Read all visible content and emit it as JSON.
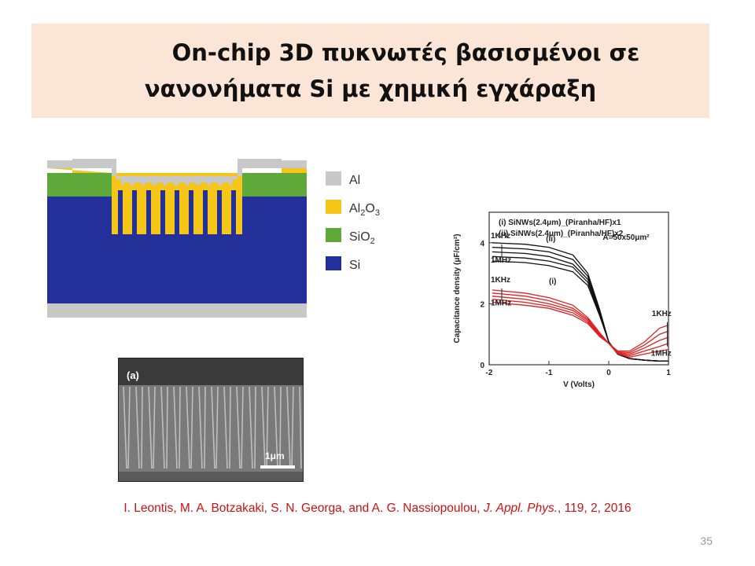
{
  "slide": {
    "title_line1": "On-chip 3D πυκνωτές βασισμένοι σε",
    "title_line2": "νανονήματα Si με χημική εγχάραξη",
    "page_number": "35"
  },
  "schematic_legend": [
    {
      "label": "Al",
      "color": "#c8c8c8"
    },
    {
      "label": "Al2O3",
      "color": "#f5c518"
    },
    {
      "label": "SiO2",
      "color": "#5fa83a"
    },
    {
      "label": "Si",
      "color": "#23309a"
    }
  ],
  "sem_image": {
    "panel_label": "(a)",
    "scale_label": "1μm"
  },
  "citation": {
    "authors": "I. Leontis, M. A. Botzakaki, S. N. Georga, and A. G. Nassiopoulou, ",
    "journal": "J. Appl. Phys.",
    "details": ", 119,  2, 2016"
  },
  "chart_data": {
    "type": "line",
    "xlabel": "V (Volts)",
    "ylabel": "Capacitance density (μF/cm²)",
    "xlim": [
      -2,
      1
    ],
    "ylim": [
      0,
      5
    ],
    "x_ticks": [
      "-2",
      "-1",
      "0",
      "1"
    ],
    "y_ticks": [
      "0",
      "2",
      "4"
    ],
    "legend": [
      "(i) SiNWs(2.4μm)_(Piranha/HF)x1",
      "(ii) SiNWs(2.4μm)_(Piranha/HF)x2"
    ],
    "area_label": "A=50x50μm²",
    "annotations": [
      {
        "text": "1KHz"
      },
      {
        "text": "1MHz"
      },
      {
        "text": "(ii)"
      },
      {
        "text": "1KHz"
      },
      {
        "text": "1MHz"
      },
      {
        "text": "(i)"
      },
      {
        "text": "1KHz"
      },
      {
        "text": "1MHz"
      }
    ],
    "series": [
      {
        "group": "(ii)",
        "color": "#111111",
        "x": [
          -1.95,
          -1.4,
          -1.0,
          -0.6,
          -0.35,
          -0.15,
          0.0,
          0.15,
          0.35,
          0.6,
          0.85,
          1.0
        ],
        "values": [
          4.0,
          3.95,
          3.85,
          3.6,
          3.0,
          1.8,
          0.75,
          0.35,
          0.2,
          0.15,
          0.12,
          0.12
        ]
      },
      {
        "group": "(ii)",
        "color": "#111111",
        "x": [
          -1.95,
          -1.4,
          -1.0,
          -0.6,
          -0.35,
          -0.15,
          0.0,
          0.15,
          0.35,
          0.6,
          0.85,
          1.0
        ],
        "values": [
          3.85,
          3.8,
          3.7,
          3.45,
          2.9,
          1.75,
          0.75,
          0.35,
          0.2,
          0.15,
          0.12,
          0.12
        ]
      },
      {
        "group": "(ii)",
        "color": "#111111",
        "x": [
          -1.95,
          -1.4,
          -1.0,
          -0.6,
          -0.35,
          -0.15,
          0.0,
          0.15,
          0.35,
          0.6,
          0.85,
          1.0
        ],
        "values": [
          3.7,
          3.65,
          3.55,
          3.3,
          2.8,
          1.7,
          0.75,
          0.35,
          0.2,
          0.15,
          0.12,
          0.12
        ]
      },
      {
        "group": "(ii)",
        "color": "#111111",
        "x": [
          -1.95,
          -1.4,
          -1.0,
          -0.6,
          -0.35,
          -0.15,
          0.0,
          0.15,
          0.35,
          0.6,
          0.85,
          1.0
        ],
        "values": [
          3.55,
          3.5,
          3.4,
          3.2,
          2.7,
          1.65,
          0.75,
          0.35,
          0.2,
          0.15,
          0.12,
          0.12
        ]
      },
      {
        "group": "(ii)",
        "color": "#111111",
        "x": [
          -1.95,
          -1.4,
          -1.0,
          -0.6,
          -0.35,
          -0.15,
          0.0,
          0.15,
          0.35,
          0.6,
          0.85,
          1.0
        ],
        "values": [
          3.4,
          3.35,
          3.25,
          3.05,
          2.6,
          1.6,
          0.75,
          0.35,
          0.2,
          0.15,
          0.12,
          0.12
        ]
      },
      {
        "group": "(i)",
        "color": "#e02020",
        "x": [
          -1.95,
          -1.4,
          -1.0,
          -0.6,
          -0.35,
          -0.15,
          0.0,
          0.15,
          0.35,
          0.6,
          0.85,
          1.0
        ],
        "values": [
          2.45,
          2.35,
          2.2,
          1.95,
          1.55,
          1.05,
          0.7,
          0.45,
          0.45,
          0.75,
          1.2,
          1.3
        ]
      },
      {
        "group": "(i)",
        "color": "#e02020",
        "x": [
          -1.95,
          -1.4,
          -1.0,
          -0.6,
          -0.35,
          -0.15,
          0.0,
          0.15,
          0.35,
          0.6,
          0.85,
          1.0
        ],
        "values": [
          2.35,
          2.25,
          2.1,
          1.85,
          1.5,
          1.0,
          0.7,
          0.42,
          0.4,
          0.65,
          1.0,
          1.1
        ]
      },
      {
        "group": "(i)",
        "color": "#e02020",
        "x": [
          -1.95,
          -1.4,
          -1.0,
          -0.6,
          -0.35,
          -0.15,
          0.0,
          0.15,
          0.35,
          0.6,
          0.85,
          1.0
        ],
        "values": [
          2.25,
          2.15,
          2.0,
          1.78,
          1.45,
          0.98,
          0.7,
          0.4,
          0.35,
          0.55,
          0.8,
          0.9
        ]
      },
      {
        "group": "(i)",
        "color": "#e02020",
        "x": [
          -1.95,
          -1.4,
          -1.0,
          -0.6,
          -0.35,
          -0.15,
          0.0,
          0.15,
          0.35,
          0.6,
          0.85,
          1.0
        ],
        "values": [
          2.15,
          2.05,
          1.92,
          1.7,
          1.4,
          0.95,
          0.7,
          0.38,
          0.3,
          0.45,
          0.6,
          0.7
        ]
      },
      {
        "group": "(i)",
        "color": "#e02020",
        "x": [
          -1.95,
          -1.4,
          -1.0,
          -0.6,
          -0.35,
          -0.15,
          0.0,
          0.15,
          0.35,
          0.6,
          0.85,
          1.0
        ],
        "values": [
          2.05,
          1.95,
          1.85,
          1.62,
          1.35,
          0.92,
          0.7,
          0.36,
          0.25,
          0.35,
          0.45,
          0.5
        ]
      }
    ]
  }
}
